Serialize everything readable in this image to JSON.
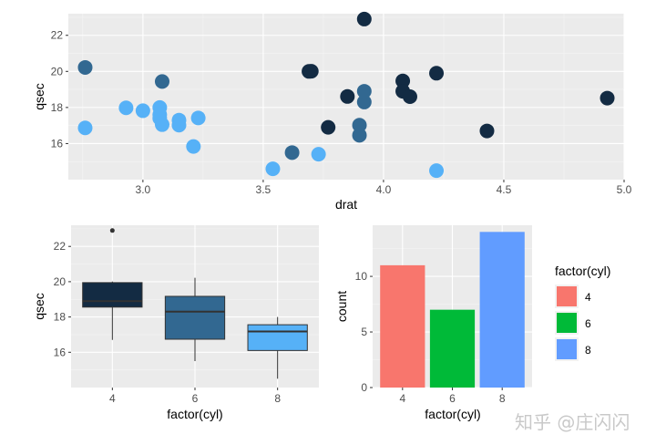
{
  "chart_data": [
    {
      "type": "scatter",
      "xlabel": "drat",
      "ylabel": "qsec",
      "xlim": [
        2.69,
        5.0
      ],
      "ylim": [
        14.0,
        23.2
      ],
      "xticks": [
        "3.0",
        "3.5",
        "4.0",
        "4.5",
        "5.0"
      ],
      "yticks": [
        "16",
        "18",
        "20",
        "22"
      ],
      "point_colors": {
        "4": "#132b43",
        "6": "#326891",
        "8": "#56b1f7"
      },
      "points": [
        {
          "x": 3.9,
          "y": 16.46,
          "cyl": 6
        },
        {
          "x": 3.9,
          "y": 17.02,
          "cyl": 6
        },
        {
          "x": 3.85,
          "y": 18.61,
          "cyl": 4
        },
        {
          "x": 3.08,
          "y": 19.44,
          "cyl": 6
        },
        {
          "x": 3.15,
          "y": 17.02,
          "cyl": 8
        },
        {
          "x": 2.76,
          "y": 20.22,
          "cyl": 6
        },
        {
          "x": 3.21,
          "y": 15.84,
          "cyl": 8
        },
        {
          "x": 3.69,
          "y": 20.0,
          "cyl": 4
        },
        {
          "x": 3.92,
          "y": 22.9,
          "cyl": 4
        },
        {
          "x": 3.92,
          "y": 18.3,
          "cyl": 6
        },
        {
          "x": 3.92,
          "y": 18.9,
          "cyl": 6
        },
        {
          "x": 3.07,
          "y": 17.4,
          "cyl": 8
        },
        {
          "x": 3.07,
          "y": 17.6,
          "cyl": 8
        },
        {
          "x": 3.07,
          "y": 18.0,
          "cyl": 8
        },
        {
          "x": 2.93,
          "y": 17.98,
          "cyl": 8
        },
        {
          "x": 3.0,
          "y": 17.82,
          "cyl": 8
        },
        {
          "x": 3.23,
          "y": 17.42,
          "cyl": 8
        },
        {
          "x": 4.08,
          "y": 19.47,
          "cyl": 4
        },
        {
          "x": 4.93,
          "y": 18.52,
          "cyl": 4
        },
        {
          "x": 4.22,
          "y": 19.9,
          "cyl": 4
        },
        {
          "x": 3.7,
          "y": 20.01,
          "cyl": 4
        },
        {
          "x": 2.76,
          "y": 16.87,
          "cyl": 8
        },
        {
          "x": 3.15,
          "y": 17.3,
          "cyl": 8
        },
        {
          "x": 3.73,
          "y": 15.41,
          "cyl": 8
        },
        {
          "x": 3.08,
          "y": 17.05,
          "cyl": 8
        },
        {
          "x": 4.08,
          "y": 18.9,
          "cyl": 4
        },
        {
          "x": 4.43,
          "y": 16.7,
          "cyl": 4
        },
        {
          "x": 3.77,
          "y": 16.9,
          "cyl": 4
        },
        {
          "x": 4.22,
          "y": 14.5,
          "cyl": 8
        },
        {
          "x": 3.62,
          "y": 15.5,
          "cyl": 6
        },
        {
          "x": 3.54,
          "y": 14.6,
          "cyl": 8
        },
        {
          "x": 4.11,
          "y": 18.6,
          "cyl": 4
        }
      ]
    },
    {
      "type": "box",
      "xlabel": "factor(cyl)",
      "ylabel": "qsec",
      "ylim": [
        14.0,
        23.2
      ],
      "categories": [
        "4",
        "6",
        "8"
      ],
      "yticks": [
        "16",
        "18",
        "20",
        "22"
      ],
      "boxes": [
        {
          "cat": "4",
          "q1": 18.56,
          "median": 18.9,
          "q3": 19.95,
          "lower": 16.7,
          "upper": 20.01,
          "outliers": [
            22.9
          ],
          "fill": "#132b43"
        },
        {
          "cat": "6",
          "q1": 16.74,
          "median": 18.3,
          "q3": 19.17,
          "lower": 15.5,
          "upper": 20.22,
          "outliers": [],
          "fill": "#326891"
        },
        {
          "cat": "8",
          "q1": 16.1,
          "median": 17.18,
          "q3": 17.56,
          "lower": 14.5,
          "upper": 18.0,
          "outliers": [],
          "fill": "#56b1f7"
        }
      ]
    },
    {
      "type": "bar",
      "xlabel": "factor(cyl)",
      "ylabel": "count",
      "ylim": [
        0,
        14.6
      ],
      "categories": [
        "4",
        "6",
        "8"
      ],
      "values": [
        11,
        7,
        14
      ],
      "colors": [
        "#f8766d",
        "#00ba38",
        "#619cff"
      ],
      "yticks": [
        "0",
        "5",
        "10"
      ],
      "legend": {
        "title": "factor(cyl)",
        "entries": [
          "4",
          "6",
          "8"
        ],
        "position": "right"
      }
    }
  ],
  "watermark": "知乎 @庄闪闪"
}
